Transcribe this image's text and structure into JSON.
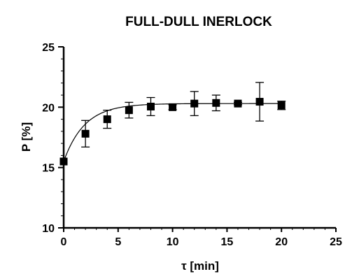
{
  "chart_data": {
    "type": "scatter",
    "title": "FULL-DULL INERLOCK",
    "xlabel": "τ [min]",
    "ylabel": "P [%]",
    "xlim": [
      0,
      25
    ],
    "ylim": [
      10,
      25
    ],
    "xticks": [
      0,
      5,
      10,
      15,
      20,
      25
    ],
    "yticks": [
      10,
      15,
      20,
      25
    ],
    "xtick_labels": [
      "0",
      "5",
      "10",
      "15",
      "20",
      "25"
    ],
    "ytick_labels": [
      "10",
      "15",
      "20",
      "25"
    ],
    "grid": false,
    "legend": "none",
    "series": [
      {
        "marker": "square",
        "color": "#000000",
        "points": [
          {
            "x": 0,
            "y": 15.5,
            "err": 0
          },
          {
            "x": 2,
            "y": 17.8,
            "err": 1.1
          },
          {
            "x": 4,
            "y": 19.0,
            "err": 0.75
          },
          {
            "x": 6,
            "y": 19.75,
            "err": 0.65
          },
          {
            "x": 8,
            "y": 20.05,
            "err": 0.75
          },
          {
            "x": 10,
            "y": 20.0,
            "err": 0.2
          },
          {
            "x": 12,
            "y": 20.3,
            "err": 1.0
          },
          {
            "x": 14,
            "y": 20.35,
            "err": 0.65
          },
          {
            "x": 16,
            "y": 20.3,
            "err": 0.1
          },
          {
            "x": 18,
            "y": 20.45,
            "err": 1.6
          },
          {
            "x": 20,
            "y": 20.15,
            "err": 0.35
          }
        ]
      }
    ],
    "fit": {
      "type": "exponential-rise",
      "y0": 15.5,
      "plateau": 20.3,
      "k": 0.52,
      "x_range": [
        0,
        20
      ]
    }
  }
}
